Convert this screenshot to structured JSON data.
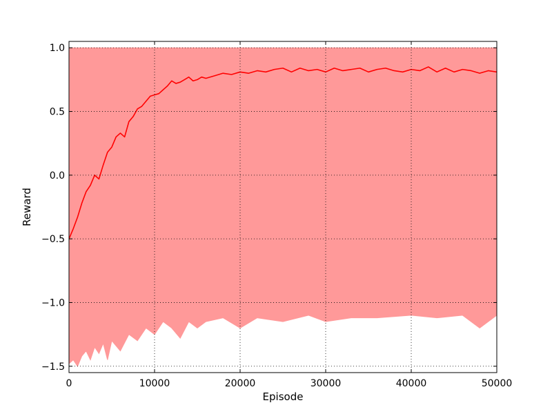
{
  "chart_data": {
    "type": "line",
    "title": "",
    "xlabel": "Episode",
    "ylabel": "Reward",
    "xlim": [
      0,
      50000
    ],
    "ylim": [
      -1.55,
      1.05
    ],
    "grid": true,
    "legend": "none",
    "x_ticks": [
      0,
      10000,
      20000,
      30000,
      40000,
      50000
    ],
    "x_tick_labels": [
      "0",
      "10000",
      "20000",
      "30000",
      "40000",
      "50000"
    ],
    "y_ticks": [
      1.0,
      0.5,
      0.0,
      -0.5,
      -1.0,
      -1.5
    ],
    "y_tick_labels": [
      "1.0",
      "0.5",
      "0.0",
      "−0.5",
      "−1.0",
      "−1.5"
    ],
    "colors": {
      "raw": "#ff9999",
      "smoothed": "#ff0000",
      "grid": "#000000"
    },
    "series": [
      {
        "name": "",
        "style": "raw-envelope",
        "x": [
          0,
          500,
          1000,
          1500,
          2000,
          2500,
          3000,
          3500,
          4000,
          4500,
          5000,
          6000,
          7000,
          8000,
          9000,
          10000,
          11000,
          12000,
          13000,
          14000,
          15000,
          16000,
          18000,
          20000,
          22000,
          25000,
          28000,
          30000,
          33000,
          36000,
          40000,
          43000,
          46000,
          48000,
          50000
        ],
        "upper": [
          1.0,
          1.0,
          1.0,
          1.0,
          1.0,
          1.0,
          1.0,
          1.0,
          1.0,
          1.0,
          1.0,
          1.0,
          1.0,
          1.0,
          1.0,
          1.0,
          1.0,
          1.0,
          1.0,
          1.0,
          1.0,
          1.0,
          1.0,
          1.0,
          1.0,
          1.0,
          1.0,
          1.0,
          1.0,
          1.0,
          1.0,
          1.0,
          1.0,
          1.0,
          1.0
        ],
        "lower": [
          -1.48,
          -1.45,
          -1.5,
          -1.42,
          -1.38,
          -1.45,
          -1.35,
          -1.4,
          -1.32,
          -1.45,
          -1.3,
          -1.38,
          -1.25,
          -1.3,
          -1.2,
          -1.25,
          -1.15,
          -1.2,
          -1.28,
          -1.15,
          -1.2,
          -1.15,
          -1.12,
          -1.2,
          -1.12,
          -1.15,
          -1.1,
          -1.15,
          -1.12,
          -1.12,
          -1.1,
          -1.12,
          -1.1,
          -1.2,
          -1.1
        ]
      },
      {
        "name": "",
        "style": "smoothed",
        "x": [
          0,
          500,
          1000,
          1500,
          2000,
          2500,
          3000,
          3500,
          4000,
          4500,
          5000,
          5500,
          6000,
          6500,
          7000,
          7500,
          8000,
          8500,
          9000,
          9500,
          10000,
          10500,
          11000,
          11500,
          12000,
          12500,
          13000,
          13500,
          14000,
          14500,
          15000,
          15500,
          16000,
          17000,
          18000,
          19000,
          20000,
          21000,
          22000,
          23000,
          24000,
          25000,
          26000,
          27000,
          28000,
          29000,
          30000,
          31000,
          32000,
          33000,
          34000,
          35000,
          36000,
          37000,
          38000,
          39000,
          40000,
          41000,
          42000,
          43000,
          44000,
          45000,
          46000,
          47000,
          48000,
          49000,
          50000
        ],
        "values": [
          -0.5,
          -0.42,
          -0.33,
          -0.22,
          -0.13,
          -0.08,
          0.0,
          -0.03,
          0.08,
          0.18,
          0.22,
          0.3,
          0.33,
          0.3,
          0.42,
          0.46,
          0.52,
          0.54,
          0.58,
          0.62,
          0.63,
          0.64,
          0.67,
          0.7,
          0.74,
          0.72,
          0.73,
          0.75,
          0.77,
          0.74,
          0.75,
          0.77,
          0.76,
          0.78,
          0.8,
          0.79,
          0.81,
          0.8,
          0.82,
          0.81,
          0.83,
          0.84,
          0.81,
          0.84,
          0.82,
          0.83,
          0.81,
          0.84,
          0.82,
          0.83,
          0.84,
          0.81,
          0.83,
          0.84,
          0.82,
          0.81,
          0.83,
          0.82,
          0.85,
          0.81,
          0.84,
          0.81,
          0.83,
          0.82,
          0.8,
          0.82,
          0.81
        ]
      }
    ]
  }
}
